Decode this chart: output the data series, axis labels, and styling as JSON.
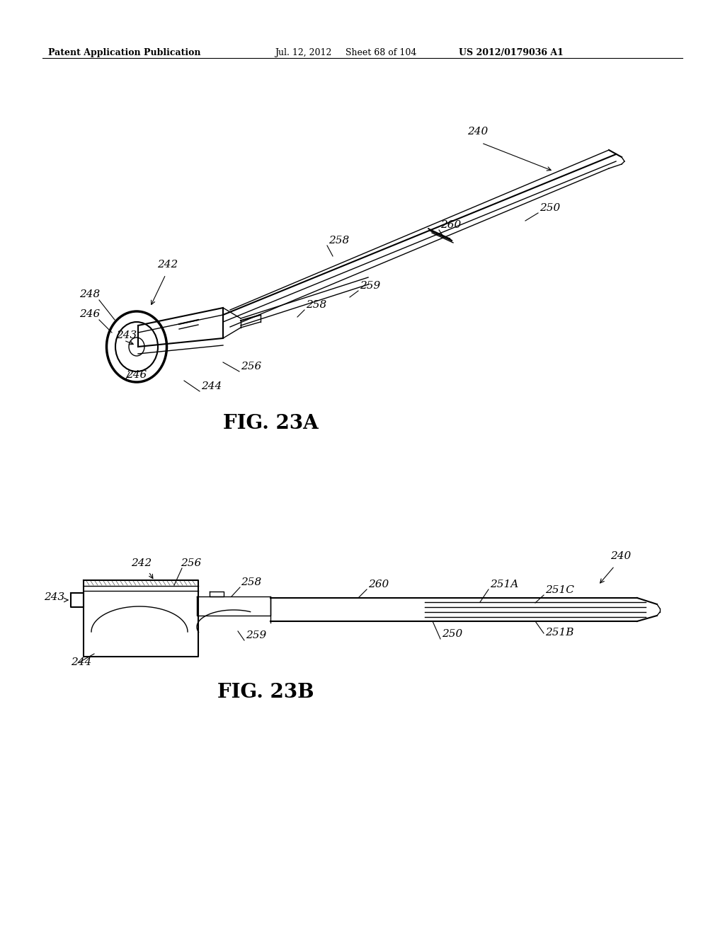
{
  "bg_color": "#ffffff",
  "header_text": "Patent Application Publication",
  "header_date": "Jul. 12, 2012",
  "header_sheet": "Sheet 68 of 104",
  "header_patent": "US 2012/0179036 A1",
  "fig_label_a": "FIG. 23A",
  "fig_label_b": "FIG. 23B",
  "line_color": "#000000",
  "label_color": "#000000",
  "label_fontsize": 11,
  "header_fontsize": 9,
  "figlabel_fontsize": 20
}
